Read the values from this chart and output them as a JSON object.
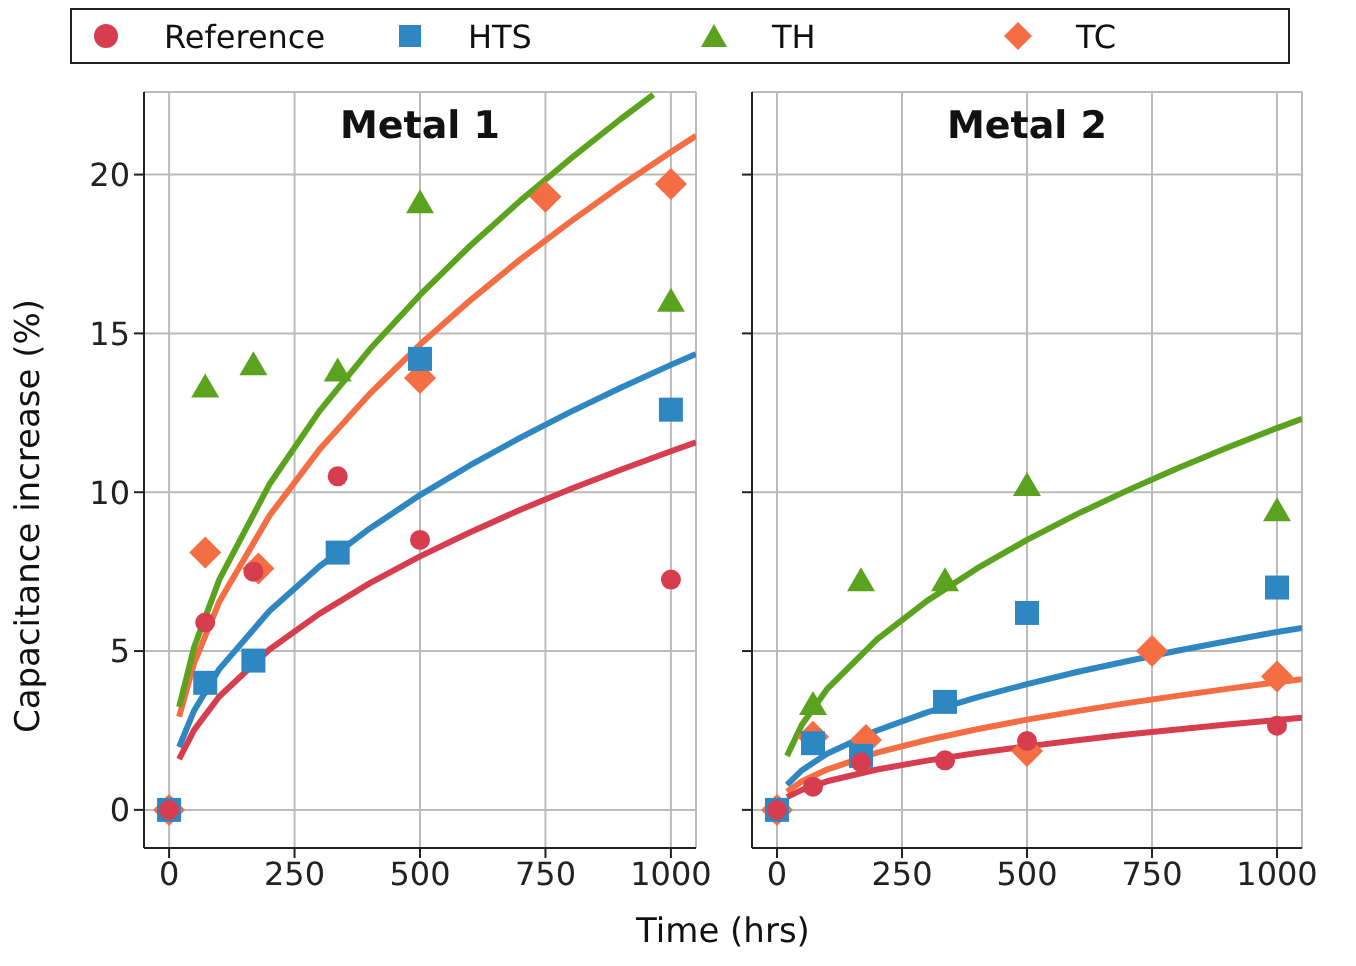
{
  "chart_data": [
    {
      "type": "scatter",
      "title": "Metal 1",
      "xlabel": "Time (hrs)",
      "ylabel": "Capacitance increase (%)",
      "xlim": [
        -50,
        1050
      ],
      "ylim": [
        -1.2,
        22.6
      ],
      "xticks": [
        0,
        250,
        500,
        750,
        1000
      ],
      "yticks": [
        0,
        5,
        10,
        15,
        20
      ],
      "grid": true,
      "legend": "top",
      "series": [
        {
          "name": "Reference",
          "color": "#d63e50",
          "marker": "circle",
          "x": [
            0,
            72,
            168,
            336,
            500,
            1000
          ],
          "values": [
            0,
            5.9,
            7.5,
            10.5,
            8.5,
            7.25
          ]
        },
        {
          "name": "HTS",
          "color": "#2f87c2",
          "marker": "square",
          "x": [
            0,
            72,
            168,
            336,
            500,
            1000
          ],
          "values": [
            0,
            4.0,
            4.7,
            8.1,
            14.2,
            12.6
          ]
        },
        {
          "name": "TH",
          "color": "#5ba21e",
          "marker": "triangle",
          "x": [
            72,
            168,
            336,
            500,
            1000
          ],
          "values": [
            13.3,
            14.0,
            13.8,
            19.1,
            16.0
          ]
        },
        {
          "name": "TC",
          "color": "#f46d43",
          "marker": "diamond",
          "x": [
            0,
            72,
            178,
            500,
            750,
            1000
          ],
          "values": [
            0,
            8.1,
            7.6,
            13.6,
            19.3,
            19.7
          ]
        },
        {
          "type": "line",
          "color": "#d63e50",
          "marker": "none",
          "x": [
            20,
            50,
            100,
            200,
            300,
            400,
            500,
            600,
            700,
            800,
            900,
            1000,
            1050
          ],
          "values": [
            1.6,
            2.52,
            3.57,
            5.05,
            6.18,
            7.14,
            7.98,
            8.74,
            9.45,
            10.1,
            10.71,
            11.29,
            11.57
          ]
        },
        {
          "type": "line",
          "color": "#2f87c2",
          "marker": "none",
          "x": [
            20,
            50,
            100,
            200,
            300,
            400,
            500,
            600,
            700,
            800,
            900,
            1000,
            1050
          ],
          "values": [
            1.98,
            3.13,
            4.43,
            6.26,
            7.67,
            8.86,
            9.91,
            10.85,
            11.72,
            12.53,
            13.29,
            14.01,
            14.35
          ]
        },
        {
          "type": "line",
          "color": "#5ba21e",
          "marker": "none",
          "x": [
            20,
            50,
            100,
            200,
            300,
            400,
            500,
            600,
            700,
            800,
            900,
            965
          ],
          "values": [
            3.24,
            5.13,
            7.25,
            10.25,
            12.56,
            14.5,
            16.21,
            17.76,
            19.18,
            20.5,
            21.75,
            22.52
          ]
        },
        {
          "type": "line",
          "color": "#f46d43",
          "marker": "none",
          "x": [
            20,
            50,
            100,
            200,
            300,
            400,
            500,
            600,
            700,
            800,
            900,
            1000,
            1050
          ],
          "values": [
            2.93,
            4.63,
            6.55,
            9.26,
            11.35,
            13.1,
            14.65,
            16.04,
            17.33,
            18.52,
            19.65,
            20.71,
            21.22
          ]
        }
      ]
    },
    {
      "type": "scatter",
      "title": "Metal 2",
      "xlim": [
        -50,
        1050
      ],
      "ylim": [
        -1.2,
        22.6
      ],
      "xticks": [
        0,
        250,
        500,
        750,
        1000
      ],
      "yticks": [
        0,
        5,
        10,
        15,
        20
      ],
      "grid": true,
      "legend": "top",
      "tick_labels": "x",
      "series": [
        {
          "name": "Reference",
          "color": "#d63e50",
          "marker": "circle",
          "x": [
            0,
            72,
            168,
            336,
            500,
            1000
          ],
          "values": [
            0,
            0.73,
            1.5,
            1.56,
            2.17,
            2.65
          ]
        },
        {
          "name": "HTS",
          "color": "#2f87c2",
          "marker": "square",
          "x": [
            0,
            72,
            168,
            336,
            500,
            1000
          ],
          "values": [
            0,
            2.1,
            1.7,
            3.4,
            6.2,
            7.0
          ]
        },
        {
          "name": "TH",
          "color": "#5ba21e",
          "marker": "triangle",
          "x": [
            72,
            168,
            336,
            500,
            1000
          ],
          "values": [
            3.3,
            7.2,
            7.2,
            10.2,
            9.4
          ]
        },
        {
          "name": "TC",
          "color": "#f46d43",
          "marker": "diamond",
          "x": [
            0,
            72,
            178,
            500,
            750,
            1000
          ],
          "values": [
            0,
            2.3,
            2.2,
            1.85,
            5.0,
            4.2
          ]
        },
        {
          "type": "line",
          "color": "#d63e50",
          "marker": "none",
          "x": [
            20,
            50,
            100,
            200,
            300,
            400,
            500,
            600,
            700,
            800,
            900,
            1000,
            1050
          ],
          "values": [
            0.4,
            0.63,
            0.9,
            1.27,
            1.55,
            1.79,
            2.0,
            2.19,
            2.37,
            2.53,
            2.69,
            2.83,
            2.9
          ]
        },
        {
          "type": "line",
          "color": "#2f87c2",
          "marker": "none",
          "x": [
            20,
            50,
            100,
            200,
            300,
            400,
            500,
            600,
            700,
            800,
            900,
            1000,
            1050
          ],
          "values": [
            0.79,
            1.25,
            1.77,
            2.5,
            3.07,
            3.54,
            3.96,
            4.34,
            4.68,
            5.01,
            5.31,
            5.6,
            5.73
          ]
        },
        {
          "type": "line",
          "color": "#5ba21e",
          "marker": "none",
          "x": [
            20,
            50,
            100,
            200,
            300,
            400,
            500,
            600,
            700,
            800,
            900,
            1000,
            1050
          ],
          "values": [
            1.7,
            2.69,
            3.8,
            5.37,
            6.58,
            7.6,
            8.5,
            9.31,
            10.05,
            10.75,
            11.4,
            12.02,
            12.31
          ]
        },
        {
          "type": "line",
          "color": "#f46d43",
          "marker": "none",
          "x": [
            20,
            50,
            100,
            200,
            300,
            400,
            500,
            600,
            700,
            800,
            900,
            1000,
            1050
          ],
          "values": [
            0.57,
            0.9,
            1.27,
            1.8,
            2.2,
            2.54,
            2.84,
            3.11,
            3.36,
            3.59,
            3.81,
            4.02,
            4.11
          ]
        }
      ]
    }
  ]
}
